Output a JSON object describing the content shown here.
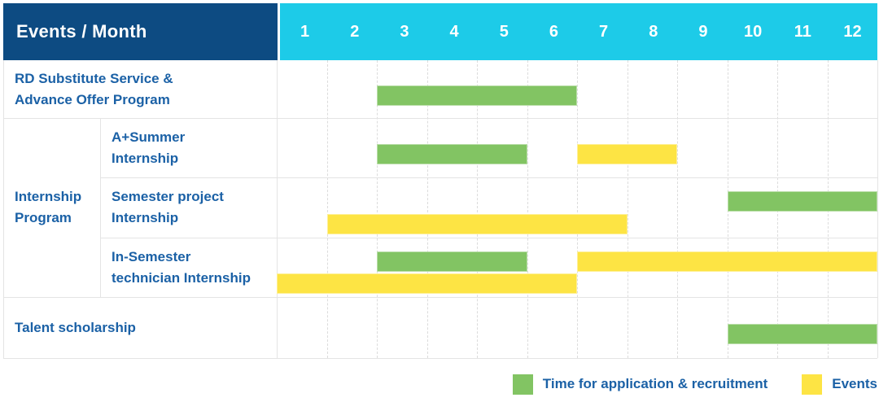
{
  "header": {
    "title": "Events / Month",
    "months": [
      "1",
      "2",
      "3",
      "4",
      "5",
      "6",
      "7",
      "8",
      "9",
      "10",
      "11",
      "12"
    ]
  },
  "legend": {
    "items": [
      {
        "name": "application",
        "label": "Time for application & recruitment",
        "color": "#82c463"
      },
      {
        "name": "events",
        "label": "Events",
        "color": "#fde444"
      }
    ]
  },
  "colors": {
    "header_bg": "#0d4b82",
    "month_band_bg": "#1dcbe8",
    "label_text": "#1b61a6",
    "bar_green": "#82c463",
    "bar_yellow": "#fde444"
  },
  "chart_data": {
    "type": "bar",
    "subtype": "gantt",
    "title": "Events / Month",
    "x_unit": "month",
    "x_range": [
      1,
      12
    ],
    "x_ticks": [
      "1",
      "2",
      "3",
      "4",
      "5",
      "6",
      "7",
      "8",
      "9",
      "10",
      "11",
      "12"
    ],
    "legend_entries": [
      "Time for application & recruitment",
      "Events"
    ],
    "legend_position": "bottom-right",
    "grid": "dashed-vertical-month-lines",
    "group_label": "Internship Program",
    "group_label_lines": [
      "Internship",
      "Program"
    ],
    "rows": [
      {
        "label": "RD Substitute Service & Advance Offer Program",
        "label_lines": [
          "RD Substitute Service &",
          "Advance Offer Program"
        ],
        "group": null,
        "bars": [
          [
            {
              "series": "Time for application & recruitment",
              "start": 3,
              "end": 6
            }
          ]
        ]
      },
      {
        "label": "A+Summer Internship",
        "label_lines": [
          "A+Summer",
          "Internship"
        ],
        "group": "Internship Program",
        "bars": [
          [
            {
              "series": "Time for application & recruitment",
              "start": 3,
              "end": 5
            },
            {
              "series": "Events",
              "start": 7,
              "end": 8
            }
          ]
        ]
      },
      {
        "label": "Semester project Internship",
        "label_lines": [
          "Semester project",
          "Internship"
        ],
        "group": "Internship Program",
        "bars": [
          [
            {
              "series": "Time for application & recruitment",
              "start": 10,
              "end": 12
            }
          ],
          [
            {
              "series": "Events",
              "start": 2,
              "end": 7
            }
          ]
        ]
      },
      {
        "label": "In-Semester technician Internship",
        "label_lines": [
          "In-Semester",
          "technician Internship"
        ],
        "group": "Internship Program",
        "bars": [
          [
            {
              "series": "Time for application & recruitment",
              "start": 3,
              "end": 5
            },
            {
              "series": "Events",
              "start": 7,
              "end": 12
            }
          ],
          [
            {
              "series": "Events",
              "start": 1,
              "end": 6
            }
          ]
        ]
      },
      {
        "label": "Talent scholarship",
        "label_lines": [
          "Talent scholarship"
        ],
        "group": null,
        "bars": [
          [
            {
              "series": "Time for application & recruitment",
              "start": 10,
              "end": 12
            }
          ]
        ]
      }
    ]
  }
}
